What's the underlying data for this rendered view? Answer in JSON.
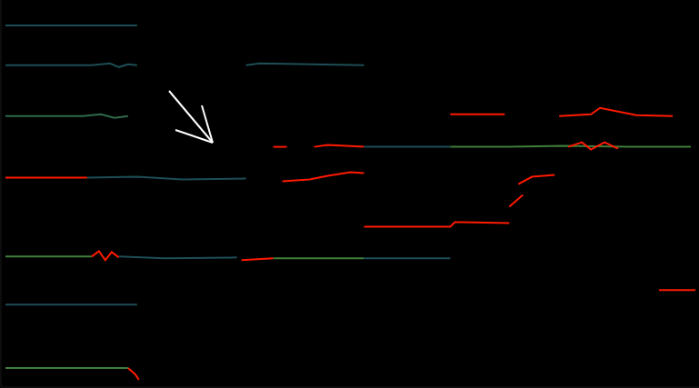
{
  "chart_data": {
    "type": "line",
    "tick_labels": false,
    "grid": false,
    "xlim": [
      0,
      769
    ],
    "ylim": [
      0,
      427
    ],
    "series": [
      {
        "color": "#1e4d55",
        "x": [
          5,
          150
        ],
        "values": [
          399,
          399
        ]
      },
      {
        "color": "#1e4d55",
        "x": [
          5,
          100,
          120,
          130,
          140,
          150
        ],
        "values": [
          355,
          355,
          357,
          353,
          356,
          355
        ]
      },
      {
        "color": "#2f6b4a",
        "x": [
          5,
          90,
          110,
          125,
          140
        ],
        "values": [
          299,
          299,
          301,
          297,
          299
        ]
      },
      {
        "color": "#ff1a00",
        "x": [
          5,
          95
        ],
        "values": [
          231,
          231
        ]
      },
      {
        "color": "#1e4d55",
        "x": [
          95,
          150,
          200,
          270
        ],
        "values": [
          231,
          232,
          229,
          230
        ]
      },
      {
        "color": "#3f7f3a",
        "x": [
          5,
          100
        ],
        "values": [
          144,
          144
        ]
      },
      {
        "color": "#ff1a00",
        "x": [
          100,
          108,
          115,
          122,
          130
        ],
        "values": [
          144,
          150,
          140,
          149,
          143
        ]
      },
      {
        "color": "#1e4d55",
        "x": [
          130,
          180,
          260
        ],
        "values": [
          144,
          142,
          143
        ]
      },
      {
        "color": "#1e4d55",
        "x": [
          5,
          150
        ],
        "values": [
          91,
          91
        ]
      },
      {
        "color": "#3f7f3a",
        "x": [
          5,
          140
        ],
        "values": [
          21,
          21
        ]
      },
      {
        "color": "#ff1a00",
        "x": [
          140,
          148,
          152
        ],
        "values": [
          21,
          14,
          8
        ]
      },
      {
        "color": "#1e4d55",
        "x": [
          270,
          285,
          400
        ],
        "values": [
          355,
          357,
          355
        ]
      },
      {
        "color": "#ff1a00",
        "x": [
          300,
          315
        ],
        "values": [
          265,
          265
        ]
      },
      {
        "color": "#ff1a00",
        "x": [
          345,
          360,
          400
        ],
        "values": [
          265,
          267,
          265
        ]
      },
      {
        "color": "#1e4d55",
        "x": [
          400,
          495
        ],
        "values": [
          265,
          265
        ]
      },
      {
        "color": "#ff1a00",
        "x": [
          310,
          340,
          360,
          385,
          400
        ],
        "values": [
          227,
          229,
          233,
          237,
          236
        ]
      },
      {
        "color": "#ff1a00",
        "x": [
          400,
          495,
          500,
          560
        ],
        "values": [
          177,
          177,
          182,
          181
        ]
      },
      {
        "color": "#ff1a00",
        "x": [
          265,
          300
        ],
        "values": [
          140,
          142
        ]
      },
      {
        "color": "#3f7f3a",
        "x": [
          300,
          400
        ],
        "values": [
          142,
          142
        ]
      },
      {
        "color": "#1e4d55",
        "x": [
          400,
          495
        ],
        "values": [
          142,
          142
        ]
      },
      {
        "color": "#ff1a00",
        "x": [
          495,
          555
        ],
        "values": [
          301,
          301
        ]
      },
      {
        "color": "#ff1a00",
        "x": [
          615,
          650,
          660,
          700,
          740
        ],
        "values": [
          299,
          301,
          308,
          300,
          299
        ]
      },
      {
        "color": "#3f7f3a",
        "x": [
          495,
          560,
          620,
          690,
          760
        ],
        "values": [
          265,
          265,
          266,
          265,
          265
        ]
      },
      {
        "color": "#ff1a00",
        "x": [
          625,
          640,
          650,
          665,
          680
        ],
        "values": [
          265,
          270,
          262,
          270,
          263
        ]
      },
      {
        "color": "#ff1a00",
        "x": [
          570,
          585,
          610
        ],
        "values": [
          224,
          232,
          234
        ]
      },
      {
        "color": "#ff1a00",
        "x": [
          560,
          575
        ],
        "values": [
          199,
          212
        ]
      },
      {
        "color": "#ff1a00",
        "x": [
          725,
          765
        ],
        "values": [
          107,
          107
        ]
      }
    ]
  }
}
